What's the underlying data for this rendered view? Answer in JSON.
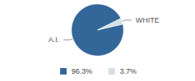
{
  "chart_data": {
    "type": "pie",
    "categories": [
      "A.I.",
      "WHITE"
    ],
    "values": [
      96.3,
      3.7
    ],
    "value_labels": [
      "96.3%",
      "3.7%"
    ],
    "colors": [
      "#336699",
      "#d3dee8"
    ],
    "legend": "bottom"
  }
}
